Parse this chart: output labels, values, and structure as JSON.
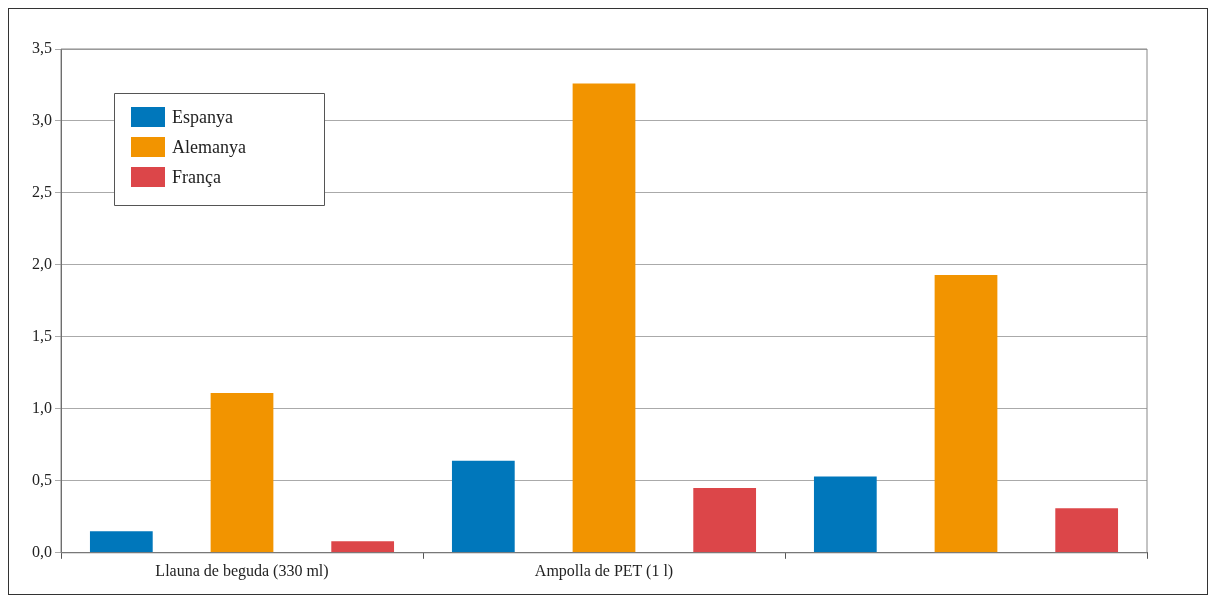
{
  "chart_data": {
    "type": "bar",
    "categories": [
      "Llauna de beguda (330 ml)",
      "Ampolla de PET (1 l)",
      null
    ],
    "series": [
      {
        "name": "Espanya",
        "color": "#0077bb",
        "values": [
          0.15,
          0.64,
          0.53
        ]
      },
      {
        "name": "Alemanya",
        "color": "#f29400",
        "values": [
          1.11,
          3.26,
          1.93
        ]
      },
      {
        "name": "França",
        "color": "#dc4649",
        "values": [
          0.08,
          0.45,
          0.31
        ]
      }
    ],
    "ylim": [
      0,
      3.5
    ],
    "yticks": [
      {
        "value": 0,
        "label": "0,0"
      },
      {
        "value": 0.5,
        "label": "0,5"
      },
      {
        "value": 1,
        "label": "1,0"
      },
      {
        "value": 1.5,
        "label": "1,5"
      },
      {
        "value": 2,
        "label": "2,0"
      },
      {
        "value": 2.5,
        "label": "2,5"
      },
      {
        "value": 3,
        "label": "3,0"
      },
      {
        "value": 3.5,
        "label": "3,5"
      }
    ],
    "grid": "y",
    "legend": "top left"
  }
}
